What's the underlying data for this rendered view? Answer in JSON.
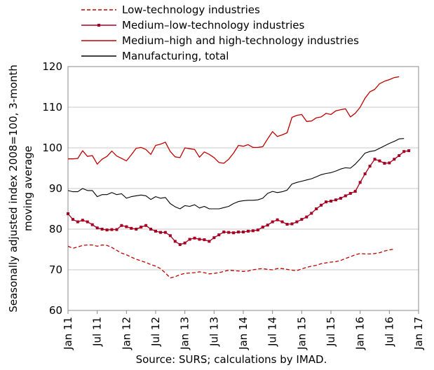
{
  "chart_data": {
    "type": "line",
    "ylabel": "Seasonally adjusted index 2008=100, 3-month moving average",
    "ylabel_lines": [
      "Seasonally adjusted index 2008=100, 3-month",
      "moving average"
    ],
    "source": "Source: SURS; calculations by IMAD.",
    "ylim": [
      60,
      120
    ],
    "yticks": [
      60,
      70,
      80,
      90,
      100,
      110,
      120
    ],
    "x_start": "2011-01",
    "x_end": "2017-01",
    "xticks": [
      "Jan 11",
      "Jul 11",
      "Jan 12",
      "Jul 12",
      "Jan 13",
      "Jul 13",
      "Jan 14",
      "Jul 14",
      "Jan 15",
      "Jul 15",
      "Jan 16",
      "Jul 16",
      "Jan 17"
    ],
    "grid": true,
    "legend_position": "top",
    "series": [
      {
        "name": "Low-technology industries",
        "style": "dashed",
        "color": "#C00000",
        "values": [
          75.8,
          75.3,
          75.6,
          76.0,
          76.1,
          76.1,
          75.8,
          76.1,
          76.0,
          75.5,
          74.8,
          74.1,
          73.7,
          73.1,
          72.6,
          72.2,
          71.8,
          71.3,
          70.9,
          70.3,
          69.2,
          68.0,
          68.3,
          68.8,
          69.1,
          69.2,
          69.3,
          69.5,
          69.3,
          69.0,
          69.1,
          69.3,
          69.6,
          69.9,
          69.8,
          69.7,
          69.6,
          69.7,
          70.0,
          70.2,
          70.3,
          70.1,
          70.0,
          70.3,
          70.3,
          70.1,
          69.9,
          69.8,
          70.2,
          70.6,
          70.9,
          71.1,
          71.5,
          71.7,
          71.9,
          72.0,
          72.3,
          72.8,
          73.2,
          73.7,
          74.0,
          73.9,
          73.9,
          74.0,
          74.2,
          74.6,
          74.9,
          75.1
        ]
      },
      {
        "name": "Medium–low-technology industries",
        "style": "solid-markers",
        "color": "#A50021",
        "values": [
          83.8,
          82.4,
          81.8,
          82.2,
          81.8,
          81.1,
          80.3,
          80.0,
          79.8,
          79.9,
          79.9,
          80.9,
          80.6,
          80.2,
          80.0,
          80.5,
          80.9,
          80.0,
          79.5,
          79.2,
          79.2,
          78.4,
          77.0,
          76.2,
          76.6,
          77.5,
          77.8,
          77.5,
          77.4,
          77.0,
          77.9,
          78.6,
          79.3,
          79.2,
          79.1,
          79.3,
          79.3,
          79.5,
          79.6,
          79.8,
          80.5,
          81.0,
          81.8,
          82.3,
          81.8,
          81.2,
          81.3,
          81.8,
          82.4,
          83.0,
          83.9,
          85.0,
          85.9,
          86.7,
          86.9,
          87.2,
          87.6,
          88.2,
          88.8,
          89.3,
          91.5,
          93.6,
          95.5,
          97.2,
          96.8,
          96.2,
          96.3,
          97.2,
          98.1,
          99.1,
          99.3
        ]
      },
      {
        "name": "Medium–high and high-technology industries",
        "style": "solid",
        "color": "#C00000",
        "values": [
          97.3,
          97.3,
          97.4,
          99.3,
          97.9,
          98.1,
          96.0,
          97.2,
          97.9,
          99.2,
          98.0,
          97.4,
          96.8,
          98.3,
          99.9,
          100.1,
          99.6,
          98.4,
          100.6,
          100.9,
          101.4,
          99.1,
          97.8,
          97.6,
          100.0,
          99.8,
          99.6,
          97.7,
          99.0,
          98.4,
          97.6,
          96.4,
          96.2,
          97.2,
          98.7,
          100.6,
          100.4,
          100.8,
          100.1,
          100.1,
          100.3,
          102.2,
          104.0,
          102.8,
          103.2,
          103.7,
          107.5,
          108.0,
          108.2,
          106.5,
          106.6,
          107.4,
          107.6,
          108.5,
          108.2,
          109.1,
          109.4,
          109.6,
          107.6,
          108.5,
          110.0,
          112.2,
          113.8,
          114.4,
          115.8,
          116.4,
          116.8,
          117.3,
          117.5
        ]
      },
      {
        "name": "Manufacturing, total",
        "style": "solid",
        "color": "#000000",
        "values": [
          89.5,
          89.2,
          89.2,
          90.0,
          89.5,
          89.5,
          88.0,
          88.5,
          88.5,
          89.0,
          88.5,
          88.7,
          87.6,
          88.0,
          88.2,
          88.4,
          88.2,
          87.3,
          88.0,
          87.6,
          87.8,
          86.3,
          85.5,
          85.0,
          85.8,
          85.6,
          86.0,
          85.2,
          85.6,
          85.0,
          85.0,
          85.0,
          85.3,
          85.6,
          86.3,
          86.8,
          87.0,
          87.1,
          87.1,
          87.2,
          87.6,
          88.8,
          89.3,
          89.0,
          89.2,
          89.6,
          91.1,
          91.5,
          91.8,
          92.1,
          92.4,
          92.9,
          93.4,
          93.7,
          93.9,
          94.3,
          94.8,
          95.1,
          95.0,
          96.0,
          97.3,
          98.7,
          99.1,
          99.3,
          99.9,
          100.5,
          101.1,
          101.6,
          102.2,
          102.3
        ]
      }
    ]
  }
}
